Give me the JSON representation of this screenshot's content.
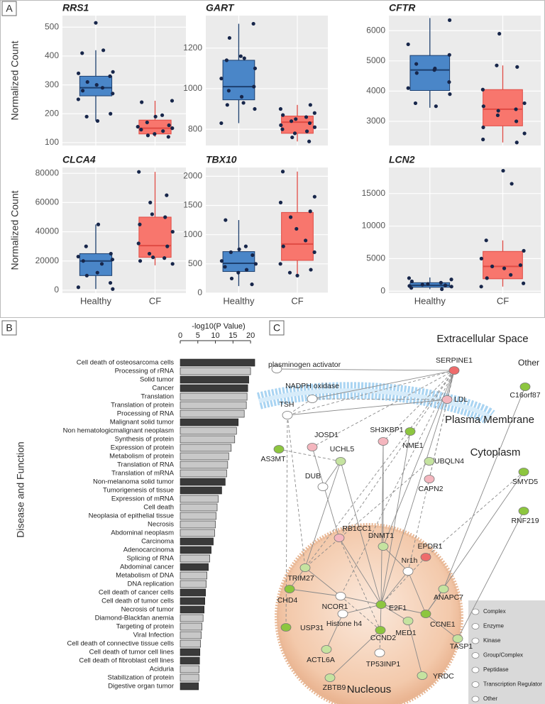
{
  "panels": [
    "A",
    "B",
    "C"
  ],
  "chart_data": [
    {
      "type": "box",
      "title": "RRS1",
      "ylabel": "Normalized Count",
      "categories": [
        null,
        null
      ],
      "ylim": [
        90,
        540
      ],
      "yticks": [
        100,
        200,
        300,
        400,
        500
      ],
      "grid": true,
      "boxes": [
        {
          "color": "#4a86c8",
          "line": "#1d3f6e",
          "whislo": 175,
          "q1": 262,
          "med": 290,
          "q3": 330,
          "whishi": 420,
          "points": [
            515,
            420,
            410,
            345,
            340,
            330,
            310,
            300,
            290,
            280,
            270,
            250,
            200,
            190,
            175
          ]
        },
        {
          "color": "#f8766d",
          "line": "#e04b44",
          "whislo": 120,
          "q1": 130,
          "med": 150,
          "q3": 178,
          "whishi": 245,
          "points": [
            245,
            240,
            195,
            190,
            170,
            160,
            155,
            150,
            145,
            140,
            130,
            125,
            120
          ]
        }
      ]
    },
    {
      "type": "box",
      "title": "GART",
      "categories": [
        null,
        null
      ],
      "ylim": [
        720,
        1360
      ],
      "yticks": [
        800,
        1000,
        1200
      ],
      "grid": true,
      "boxes": [
        {
          "color": "#4a86c8",
          "line": "#1d3f6e",
          "whislo": 830,
          "q1": 945,
          "med": 1010,
          "q3": 1140,
          "whishi": 1320,
          "points": [
            1320,
            1250,
            1160,
            1150,
            1140,
            1100,
            1050,
            1010,
            990,
            960,
            930,
            920,
            900,
            830
          ]
        },
        {
          "color": "#f8766d",
          "line": "#e04b44",
          "whislo": 740,
          "q1": 780,
          "med": 835,
          "q3": 865,
          "whishi": 920,
          "points": [
            920,
            900,
            880,
            870,
            860,
            850,
            840,
            830,
            820,
            810,
            800,
            790,
            780,
            760,
            740
          ]
        }
      ]
    },
    {
      "type": "box",
      "title": "CFTR",
      "categories": [
        null,
        null
      ],
      "ylim": [
        2200,
        6500
      ],
      "yticks": [
        3000,
        4000,
        5000,
        6000
      ],
      "grid": true,
      "boxes": [
        {
          "color": "#4a86c8",
          "line": "#1d3f6e",
          "whislo": 3450,
          "q1": 4020,
          "med": 4700,
          "q3": 5180,
          "whishi": 6420,
          "points": [
            6350,
            5550,
            5200,
            4900,
            4750,
            4700,
            4600,
            4300,
            4100,
            3900,
            3600,
            3500
          ]
        },
        {
          "color": "#f8766d",
          "line": "#e04b44",
          "whislo": 2300,
          "q1": 2850,
          "med": 3400,
          "q3": 4050,
          "whishi": 4850,
          "points": [
            5900,
            4850,
            4800,
            4050,
            3600,
            3500,
            3400,
            3350,
            3200,
            3000,
            2800,
            2600,
            2400,
            2300
          ]
        }
      ]
    },
    {
      "type": "box",
      "title": "CLCA4",
      "ylabel": "Normalized Count",
      "categories": [
        "Healthy",
        "CF"
      ],
      "ylim": [
        -2000,
        84000
      ],
      "yticks": [
        0,
        20000,
        40000,
        60000,
        80000
      ],
      "grid": true,
      "boxes": [
        {
          "color": "#4a86c8",
          "line": "#1d3f6e",
          "whislo": 800,
          "q1": 10000,
          "med": 20000,
          "q3": 25000,
          "whishi": 45000,
          "points": [
            45000,
            30000,
            25000,
            23000,
            21000,
            20000,
            18000,
            12000,
            10000,
            5000,
            2000,
            800
          ]
        },
        {
          "color": "#f8766d",
          "line": "#e04b44",
          "whislo": 17000,
          "q1": 22500,
          "med": 30500,
          "q3": 50000,
          "whishi": 81000,
          "points": [
            81000,
            65000,
            60000,
            52000,
            50000,
            45000,
            40000,
            32000,
            30000,
            25000,
            22500,
            22000,
            20000,
            18000
          ]
        }
      ]
    },
    {
      "type": "box",
      "title": "TBX10",
      "categories": [
        "Healthy",
        "CF"
      ],
      "ylim": [
        0,
        2150
      ],
      "yticks": [
        0,
        500,
        1000,
        1500,
        2000
      ],
      "grid": true,
      "boxes": [
        {
          "color": "#4a86c8",
          "line": "#1d3f6e",
          "whislo": 120,
          "q1": 370,
          "med": 510,
          "q3": 710,
          "whishi": 1250,
          "points": [
            1250,
            800,
            750,
            700,
            650,
            550,
            500,
            450,
            400,
            350,
            250,
            150
          ]
        },
        {
          "color": "#f8766d",
          "line": "#e04b44",
          "whislo": 300,
          "q1": 560,
          "med": 840,
          "q3": 1380,
          "whishi": 2080,
          "points": [
            2080,
            1650,
            1550,
            1400,
            1300,
            1100,
            900,
            800,
            700,
            500,
            400,
            350,
            300
          ]
        }
      ]
    },
    {
      "type": "box",
      "title": "LCN2",
      "categories": [
        "Healthy",
        "CF"
      ],
      "ylim": [
        -300,
        19000
      ],
      "yticks": [
        0,
        5000,
        10000,
        15000
      ],
      "grid": true,
      "boxes": [
        {
          "color": "#4a86c8",
          "line": "#1d3f6e",
          "whislo": 300,
          "q1": 600,
          "med": 900,
          "q3": 1300,
          "whishi": 2100,
          "points": [
            2000,
            1800,
            1500,
            1300,
            1100,
            1000,
            900,
            800,
            700,
            500,
            300
          ]
        },
        {
          "color": "#f8766d",
          "line": "#e04b44",
          "whislo": 700,
          "q1": 1900,
          "med": 3800,
          "q3": 6100,
          "whishi": 7800,
          "points": [
            18500,
            16500,
            7800,
            6200,
            5000,
            4000,
            3800,
            3500,
            2500,
            2000,
            1200,
            700
          ]
        }
      ]
    },
    {
      "type": "hbar",
      "xlabel": "-log10(P Value)",
      "ylabel": "Disease and Function",
      "xlim": [
        0,
        22
      ],
      "xticks": [
        0,
        5,
        10,
        15,
        20
      ],
      "categories": [
        "Cell death of osteosarcoma cells",
        "Processing of rRNA",
        "Solid tumor",
        "Cancer",
        "Translation",
        "Translation of protein",
        "Processing of RNA",
        "Malignant solid tumor",
        "Non hematologicmalignant neoplasm",
        "Synthesis of protein",
        "Expression of protein",
        "Metabolism of protein",
        "Translation of RNA",
        "Translation of mRNA",
        "Non-melanoma solid tumor",
        "Tumorigenesis of tissue",
        "Expression of mRNA",
        "Cell death",
        "Neoplasia of epithelial tissue",
        "Necrosis",
        "Abdominal neoplasm",
        "Carcinoma",
        "Adenocarcinoma",
        "Splicing of RNA",
        "Abdominal cancer",
        "Metabolism of DNA",
        "DNA replication",
        "Cell death of cancer cells",
        "Cell death of tumor cells",
        "Necrosis of tumor",
        "Diamond-Blackfan anemia",
        "Targeting of protein",
        "Viral Infection",
        "Cell death of connective tissue cells",
        "Cell death of tumor cell lines",
        "Cell death of fibroblast cell lines",
        "Aciduria",
        "Stabilization of protein",
        "Digestive organ tumor"
      ],
      "values": [
        21.2,
        20,
        19.5,
        19.2,
        19,
        18.8,
        18.2,
        16.5,
        16,
        15.5,
        14.5,
        13.8,
        13.5,
        13.2,
        12.8,
        11.8,
        10.8,
        10.5,
        10.2,
        10,
        9.8,
        9.4,
        8.8,
        8.4,
        8,
        7.6,
        7.4,
        7.2,
        7,
        6.8,
        6.5,
        6.2,
        6,
        5.8,
        5.6,
        5.5,
        5.4,
        5.3,
        5.2
      ],
      "colors": [
        "#3a3a3a",
        "#c8c8c8",
        "#3a3a3a",
        "#3a3a3a",
        "#c8c8c8",
        "#c8c8c8",
        "#c8c8c8",
        "#3a3a3a",
        "#c8c8c8",
        "#c8c8c8",
        "#c8c8c8",
        "#c8c8c8",
        "#c8c8c8",
        "#c8c8c8",
        "#3a3a3a",
        "#3a3a3a",
        "#c8c8c8",
        "#c8c8c8",
        "#c8c8c8",
        "#c8c8c8",
        "#c8c8c8",
        "#3a3a3a",
        "#3a3a3a",
        "#c8c8c8",
        "#3a3a3a",
        "#c8c8c8",
        "#c8c8c8",
        "#3a3a3a",
        "#3a3a3a",
        "#3a3a3a",
        "#c8c8c8",
        "#c8c8c8",
        "#c8c8c8",
        "#c8c8c8",
        "#3a3a3a",
        "#3a3a3a",
        "#c8c8c8",
        "#c8c8c8",
        "#3a3a3a"
      ]
    }
  ],
  "network": {
    "compartments": [
      "Extracellular Space",
      "Other",
      "Plasma Membrane",
      "Cytoplasm",
      "Nucleous"
    ],
    "nodes": [
      {
        "label": "plasminogen activator",
        "color": "#ffffff"
      },
      {
        "label": "SERPINE1",
        "color": "#ee6b6b"
      },
      {
        "label": "NADPH oxidase",
        "color": "#ffffff"
      },
      {
        "label": "LDL",
        "color": "#f4b6be"
      },
      {
        "label": "TSH",
        "color": "#ffffff"
      },
      {
        "label": "C16orf87",
        "color": "#8dc63f"
      },
      {
        "label": "JOSD1",
        "color": "#f4b6be"
      },
      {
        "label": "SH3KBP1",
        "color": "#f4b6be"
      },
      {
        "label": "NME1",
        "color": "#8dc63f"
      },
      {
        "label": "AS3MT",
        "color": "#8dc63f"
      },
      {
        "label": "UCHL5",
        "color": "#c5e3a0"
      },
      {
        "label": "UBQLN4",
        "color": "#c5e3a0"
      },
      {
        "label": "SMYD5",
        "color": "#8dc63f"
      },
      {
        "label": "DUB",
        "color": "#ffffff"
      },
      {
        "label": "CAPN2",
        "color": "#f4b6be"
      },
      {
        "label": "RNF219",
        "color": "#8dc63f"
      },
      {
        "label": "RB1CC1",
        "color": "#f4b6be"
      },
      {
        "label": "DNMT1",
        "color": "#c5e3a0"
      },
      {
        "label": "EPDR1",
        "color": "#ee6b6b"
      },
      {
        "label": "TRIM27",
        "color": "#c5e3a0"
      },
      {
        "label": "Nr1h",
        "color": "#ffffff"
      },
      {
        "label": "CHD4",
        "color": "#8dc63f"
      },
      {
        "label": "NCOR1",
        "color": "#ffffff"
      },
      {
        "label": "ANAPC7",
        "color": "#c5e3a0"
      },
      {
        "label": "E2F1",
        "color": "#8dc63f"
      },
      {
        "label": "Histone h4",
        "color": "#ffffff"
      },
      {
        "label": "CCNE1",
        "color": "#8dc63f"
      },
      {
        "label": "MED1",
        "color": "#c5e3a0"
      },
      {
        "label": "CCND2",
        "color": "#8dc63f"
      },
      {
        "label": "USP31",
        "color": "#8dc63f"
      },
      {
        "label": "ACTL6A",
        "color": "#c5e3a0"
      },
      {
        "label": "TASP1",
        "color": "#c5e3a0"
      },
      {
        "label": "TP53INP1",
        "color": "#ffffff"
      },
      {
        "label": "ZBTB9",
        "color": "#c5e3a0"
      },
      {
        "label": "YRDC",
        "color": "#c5e3a0"
      }
    ],
    "legend": [
      "Complex",
      "Enzyme",
      "Kinase",
      "Group/Complex",
      "Peptidase",
      "Transcription Regulator",
      "Other"
    ]
  }
}
